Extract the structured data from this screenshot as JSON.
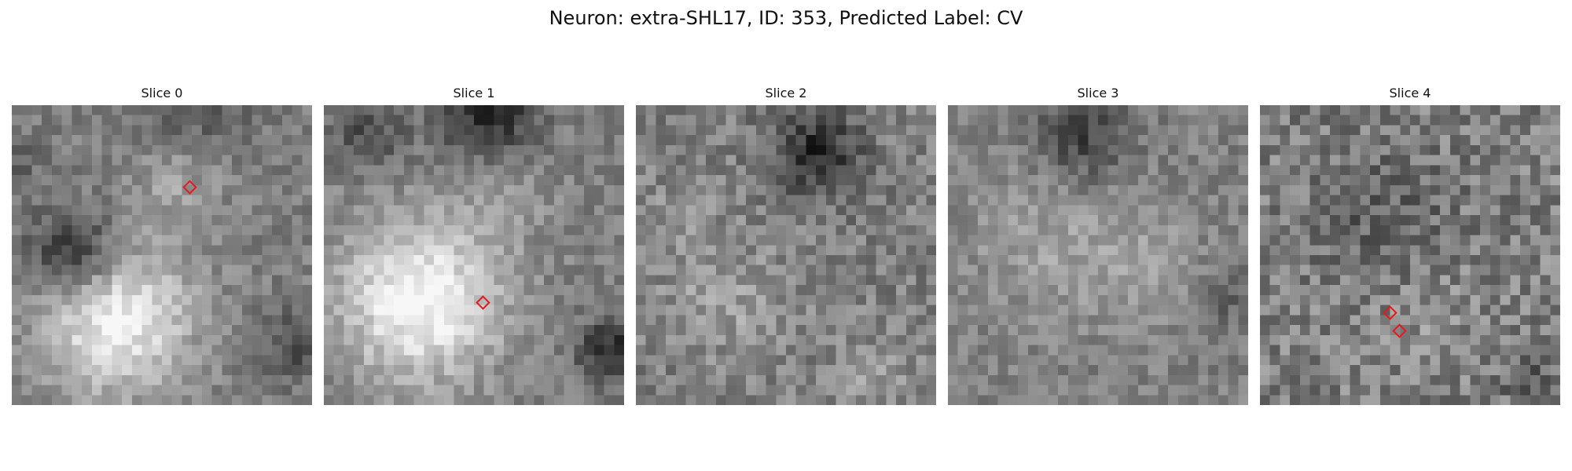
{
  "figure": {
    "title": "Neuron: extra-SHL17, ID: 353, Predicted Label: CV"
  },
  "slices": [
    {
      "label": "Slice 0",
      "seed": 11,
      "markers": [
        [
          0.595,
          0.275
        ]
      ],
      "blobs": [
        [
          0.35,
          0.72,
          0.24,
          0.45
        ],
        [
          0.55,
          0.25,
          0.14,
          0.15
        ],
        [
          0.2,
          0.5,
          0.14,
          -0.38
        ],
        [
          0.6,
          0.0,
          0.2,
          -0.15
        ],
        [
          0.95,
          0.8,
          0.12,
          -0.2
        ],
        [
          0.0,
          0.2,
          0.12,
          -0.1
        ]
      ]
    },
    {
      "label": "Slice 1",
      "seed": 23,
      "markers": [
        [
          0.532,
          0.66
        ]
      ],
      "blobs": [
        [
          0.32,
          0.65,
          0.26,
          0.5
        ],
        [
          0.55,
          0.03,
          0.16,
          -0.35
        ],
        [
          0.15,
          0.1,
          0.12,
          -0.2
        ],
        [
          0.95,
          0.82,
          0.1,
          -0.35
        ],
        [
          0.6,
          0.3,
          0.15,
          0.12
        ]
      ]
    },
    {
      "label": "Slice 2",
      "seed": 37,
      "markers": [],
      "blobs": [
        [
          0.6,
          0.15,
          0.15,
          -0.32
        ],
        [
          0.3,
          0.65,
          0.2,
          0.12
        ],
        [
          0.8,
          0.9,
          0.12,
          0.1
        ],
        [
          0.15,
          0.35,
          0.12,
          0.05
        ]
      ]
    },
    {
      "label": "Slice 3",
      "seed": 51,
      "markers": [],
      "blobs": [
        [
          0.45,
          0.1,
          0.15,
          -0.25
        ],
        [
          0.3,
          0.45,
          0.25,
          0.12
        ],
        [
          0.65,
          0.55,
          0.2,
          0.12
        ],
        [
          0.92,
          0.65,
          0.12,
          -0.12
        ]
      ]
    },
    {
      "label": "Slice 4",
      "seed": 67,
      "markers": [
        [
          0.435,
          0.695
        ],
        [
          0.465,
          0.755
        ]
      ],
      "blobs": [
        [
          0.4,
          0.35,
          0.22,
          -0.12
        ],
        [
          0.55,
          0.7,
          0.2,
          0.05
        ],
        [
          0.9,
          0.9,
          0.1,
          -0.15
        ]
      ]
    }
  ]
}
